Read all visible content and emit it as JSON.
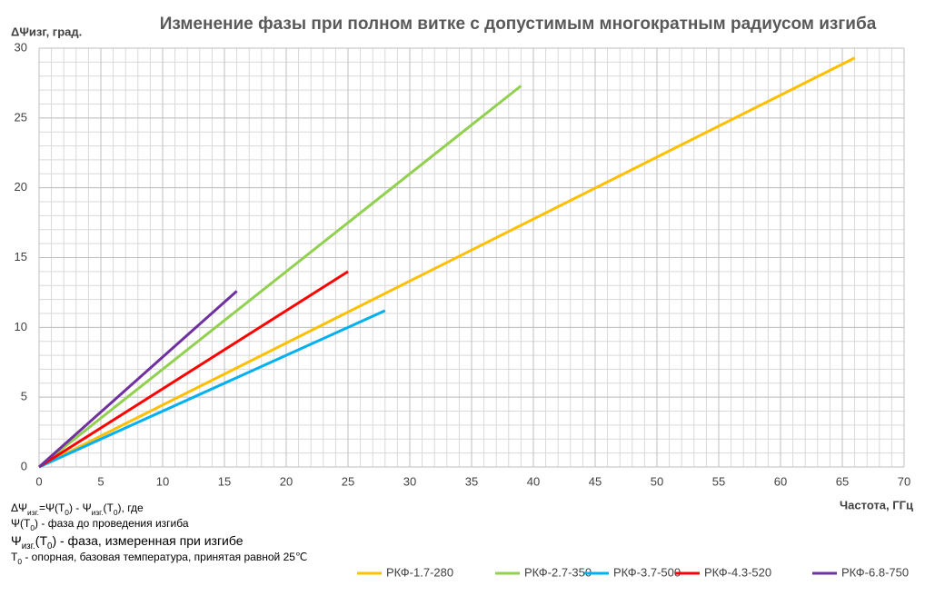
{
  "chart_data": {
    "type": "line",
    "title": "Изменение фазы при полном витке с допустимым многократным радиусом изгиба",
    "y_label": "ΔΨизг, град.",
    "x_label": "Частота, ГГц",
    "xlim": [
      0,
      70
    ],
    "xticks": [
      0,
      5,
      10,
      15,
      20,
      25,
      30,
      35,
      40,
      45,
      50,
      55,
      60,
      65,
      70
    ],
    "ylim": [
      0,
      30
    ],
    "yticks": [
      0,
      5,
      10,
      15,
      20,
      25,
      30
    ],
    "grid": true,
    "minor_grid": 1,
    "legend": "bottom-right",
    "series": [
      {
        "name": "РКФ-1.7-280",
        "color": "#ffc000",
        "x": [
          0,
          66
        ],
        "values": [
          0,
          29.3
        ]
      },
      {
        "name": "РКФ-2.7-350",
        "color": "#92d050",
        "x": [
          0,
          39
        ],
        "values": [
          0,
          27.3
        ]
      },
      {
        "name": "РКФ-3.7-500",
        "color": "#00b0f0",
        "x": [
          0,
          28
        ],
        "values": [
          0,
          11.2
        ]
      },
      {
        "name": "РКФ-4.3-520",
        "color": "#ff0000",
        "x": [
          0,
          25
        ],
        "values": [
          0,
          14
        ]
      },
      {
        "name": "РКФ-6.8-750",
        "color": "#7030a0",
        "x": [
          0,
          16
        ],
        "values": [
          0,
          12.6
        ]
      }
    ],
    "notes": [
      [
        {
          "text": "ΔΨ"
        },
        {
          "sub": "изг."
        },
        {
          "text": "=Ψ(T"
        },
        {
          "sub": "0"
        },
        {
          "text": ") - Ψ"
        },
        {
          "sub": "изг."
        },
        {
          "text": "(T"
        },
        {
          "sub": "0"
        },
        {
          "text": "), где"
        }
      ],
      [
        {
          "text": "Ψ(T"
        },
        {
          "sub": "0"
        },
        {
          "text": ") - фаза до проведения  изгиба"
        }
      ],
      [
        {
          "text": "Ψ"
        },
        {
          "sub": "изг."
        },
        {
          "text": "(T"
        },
        {
          "sub": "0"
        },
        {
          "text": ") - фаза, измеренная при изгибе"
        }
      ],
      [
        {
          "text": "T"
        },
        {
          "sub": "0"
        },
        {
          "text": " - опорная, базовая температура, принятая равной 25℃"
        }
      ]
    ]
  }
}
